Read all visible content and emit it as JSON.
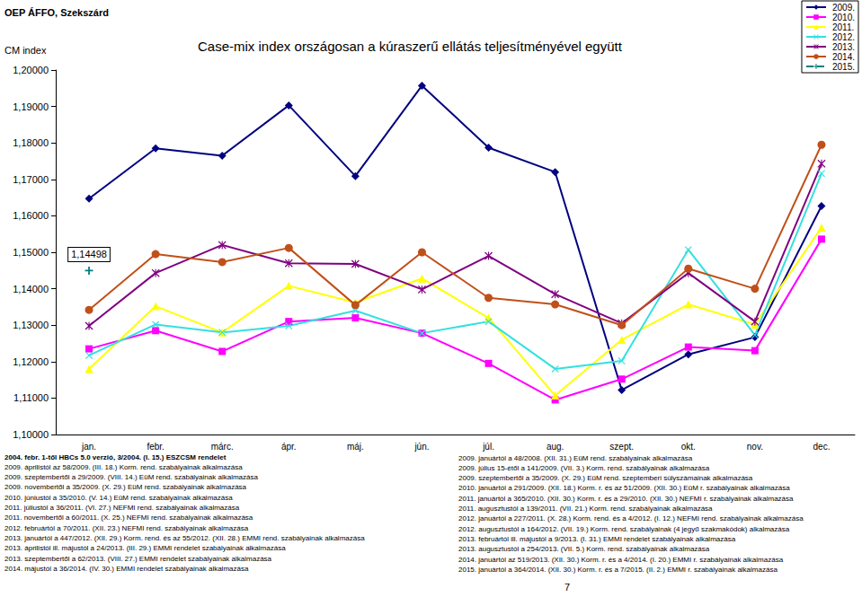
{
  "header": {
    "source": "OEP ÁFFO, Szekszárd",
    "page": "7"
  },
  "chart_data": {
    "type": "line",
    "title": "Case-mix index országosan a kúraszerű ellátás teljesítményével együtt",
    "y_label": "CM index",
    "categories": [
      "jan.",
      "febr.",
      "márc.",
      "ápr.",
      "máj.",
      "jún.",
      "júl.",
      "aug.",
      "szept.",
      "okt.",
      "nov.",
      "dec."
    ],
    "ylim": [
      1.1,
      1.2
    ],
    "yticks": [
      {
        "value": 1.1,
        "label": "1,10000"
      },
      {
        "value": 1.11,
        "label": "1,11000"
      },
      {
        "value": 1.12,
        "label": "1,12000"
      },
      {
        "value": 1.13,
        "label": "1,13000"
      },
      {
        "value": 1.14,
        "label": "1,14000"
      },
      {
        "value": 1.15,
        "label": "1,15000"
      },
      {
        "value": 1.16,
        "label": "1,16000"
      },
      {
        "value": 1.17,
        "label": "1,17000"
      },
      {
        "value": 1.18,
        "label": "1,18000"
      },
      {
        "value": 1.19,
        "label": "1,19000"
      },
      {
        "value": 1.2,
        "label": "1,20000"
      }
    ],
    "grid": false,
    "legend": "top-right",
    "series": [
      {
        "name": "2009.",
        "color": "#000080",
        "marker": "diamond",
        "line_style": "solid",
        "values": [
          1.1647,
          1.1785,
          1.1765,
          1.1903,
          1.1709,
          1.1957,
          1.1787,
          1.172,
          1.1122,
          1.122,
          1.1267,
          1.1627
        ]
      },
      {
        "name": "2010.",
        "color": "#FF00FF",
        "marker": "square",
        "line_style": "solid",
        "values": [
          1.1235,
          1.1285,
          1.1228,
          1.131,
          1.132,
          1.1278,
          1.1195,
          1.1095,
          1.1152,
          1.124,
          1.123,
          1.1536
        ]
      },
      {
        "name": "2011.",
        "color": "#FFFF00",
        "marker": "triangle",
        "line_style": "solid",
        "values": [
          1.118,
          1.1352,
          1.128,
          1.1408,
          1.1362,
          1.1428,
          1.132,
          1.1107,
          1.126,
          1.1357,
          1.1302,
          1.1568
        ]
      },
      {
        "name": "2012.",
        "color": "#33E0E0",
        "marker": "x",
        "line_style": "solid",
        "values": [
          1.1217,
          1.1302,
          1.128,
          1.1298,
          1.134,
          1.1278,
          1.131,
          1.118,
          1.1202,
          1.1507,
          1.1273,
          1.1716
        ]
      },
      {
        "name": "2013.",
        "color": "#800080",
        "marker": "star",
        "line_style": "solid",
        "values": [
          1.1298,
          1.1443,
          1.152,
          1.147,
          1.1468,
          1.1398,
          1.149,
          1.1385,
          1.1305,
          1.1443,
          1.131,
          1.1743
        ]
      },
      {
        "name": "2014.",
        "color": "#C0501A",
        "marker": "circle",
        "line_style": "solid",
        "values": [
          1.1342,
          1.1495,
          1.1473,
          1.1512,
          1.1355,
          1.15,
          1.1375,
          1.1357,
          1.13,
          1.1455,
          1.14,
          1.1795
        ]
      },
      {
        "name": "2015.",
        "color": "#008080",
        "marker": "plus",
        "line_style": "dashed",
        "values": [
          1.14498,
          null,
          null,
          null,
          null,
          null,
          null,
          null,
          null,
          null,
          null,
          null
        ],
        "value_labels": [
          "1,14498",
          null,
          null,
          null,
          null,
          null,
          null,
          null,
          null,
          null,
          null,
          null
        ]
      }
    ]
  },
  "notes": {
    "left": [
      "2004. febr. 1-től HBCs 5.0 verzió, 3/2004. (I. 15.) ESZCSM rendelet",
      "2009. áprilistól az 58/2009. (III. 18.) Korm. rend. szabályainak alkalmazása",
      "2009. szeptembertől a 29/2009. (VIII. 14.) EüM rend. szabályainak alkalmazása",
      "2009. novembertől a 35/2009. (X. 29.) EüM rend. szabályainak alkalmazása",
      "2010. júniustól a 35/2010. (V. 14.) EüM rend. szabályainak alkalmazása",
      "2011. júliustól a 36/2011. (VI. 27.) NEFMI rend. szabályainak alkalmazása",
      "2011. novembertől a 60/2011. (X. 25.) NEFMI rend. szabályainak alkalmazása",
      "2012. februártól a 70/2011. (XII. 23.) NEFMI rend. szabályainak alkalmazása",
      "2013. januártól a 447/2012. (XII. 29.) Korm. rend. és az 55/2012. (XII. 28.) EMMI rend. szabályainak alkalmazása",
      "2013. áprilistól ill. májustól a 24/2013. (III. 29.) EMMI rendelet szabályainak alkalmazása",
      "2013. szeptembertől a 62/2013. (VIII. 27.) EMMI rendelet szabályainak alkalmazása",
      "2014. májustól a 36/2014. (IV. 30.) EMMI rendelet szabályainak alkalmazása"
    ],
    "right": [
      "2009. januártól a 48/2008. (XII. 31.) EüM rend. szabályainak alkalmazása",
      "2009. július 15-étől a 141/2009. (VII. 3.) Korm. rend. szabályainak alkalmazása",
      "2009. szeptembertől a 35/2009. (X. 29.) EüM rend. szeptemberi súlyszámainak alkalmazása",
      "2010. januártól a 291/2009. (XII. 18.) Korm. r. és az 51/2009. (XII. 30.) EüM r. szabályainak alkalmazása",
      "2011. januártól a 365/2010. (XII. 30.) Korm. r. és a 29/2010. (XII. 30.) NEFMI r. szabályainak alkalmazása",
      "2011. augusztustól a 139/2011. (VII. 21.) Korm. rend. szabályainak alkalmazása",
      "2012. januártól a 227/2011. (X. 28.) Korm. rend. és a 4/2012. (I. 12.) NEFMI rend. szabályainak alkalmazása",
      "2012. augusztustól a 164/2012. (VII. 19.) Korm. rend. szabályainak (4 jegyű szakmakódok) alkalmazása",
      "2013. februártól ill. májustól a 9/2013. (I. 31.) EMMI rendelet szabályainak alkalmazása",
      "2013. augusztustól a 254/2013. (VII. 5.) Korm. rend. szabályainak alkalmazása",
      "2014. januártól az 519/2013. (XII. 30.) Korm. r. és a 4/2014. (I. 20.) EMMI r. szabályainak alkalmazása",
      "2015. januártól a 364/2014. (XII. 30.) Korm. r. és a 7/2015. (II. 2.) EMMI r. szabályainak alkalmazása"
    ]
  }
}
